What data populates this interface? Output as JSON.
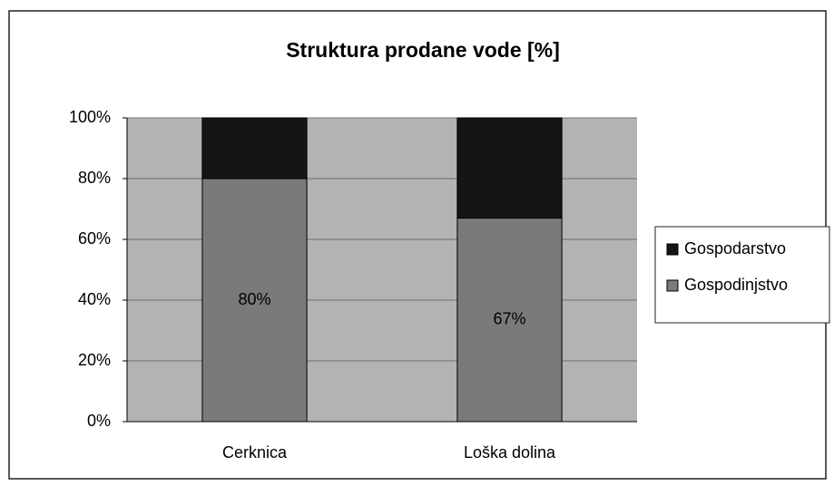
{
  "chart_data": {
    "type": "stacked_bar",
    "title": "Struktura prodane vode [%]",
    "categories": [
      "Cerknica",
      "Loška dolina"
    ],
    "series": [
      {
        "name": "Gospodinjstvo",
        "color": "#7a7a7a",
        "values": [
          80,
          67
        ],
        "value_labels": [
          "80%",
          "67%"
        ]
      },
      {
        "name": "Gospodarstvo",
        "color": "#151515",
        "values": [
          20,
          33
        ]
      }
    ],
    "ylim": [
      0,
      100
    ],
    "yticks": [
      {
        "value": 0,
        "label": "0%"
      },
      {
        "value": 20,
        "label": "20%"
      },
      {
        "value": 40,
        "label": "40%"
      },
      {
        "value": 60,
        "label": "60%"
      },
      {
        "value": 80,
        "label": "80%"
      },
      {
        "value": 100,
        "label": "100%"
      }
    ],
    "grid": true,
    "legend": "right"
  }
}
